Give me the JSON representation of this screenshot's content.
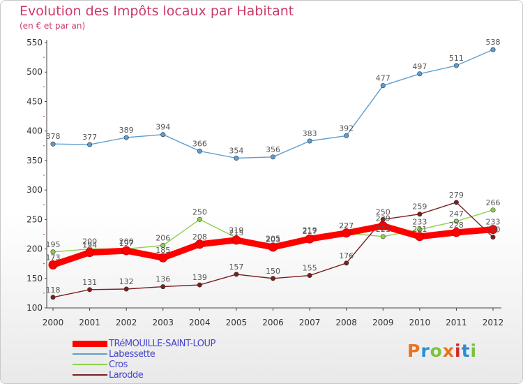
{
  "header": {
    "title": "Evolution des Impôts locaux par Habitant",
    "subtitle": "(en € et par an)"
  },
  "logo": {
    "text": "Proxiti",
    "letters": [
      "P",
      "r",
      "o",
      "x",
      "i",
      "t",
      "i"
    ],
    "colors": [
      "#e8731e",
      "#2a8fd4",
      "#7cc242",
      "#e8731e",
      "#d4242a",
      "#2a8fd4",
      "#7cc242"
    ]
  },
  "colors": {
    "title": "#cc3a66",
    "axis_ticks": "#cc3a66",
    "label_text": "#555555"
  },
  "chart_data": {
    "type": "line",
    "x": [
      "2000",
      "2001",
      "2002",
      "2003",
      "2004",
      "2005",
      "2006",
      "2007",
      "2008",
      "2009",
      "2010",
      "2011",
      "2012"
    ],
    "ylim": [
      100,
      550
    ],
    "yticks": [
      100,
      150,
      200,
      250,
      300,
      350,
      400,
      450,
      500,
      550
    ],
    "grid": false,
    "legend_position": "bottom-left",
    "series": [
      {
        "name": "TRéMOUILLE-SAINT-LOUP",
        "color": "#ff0000",
        "values": [
          173,
          194,
          197,
          185,
          208,
          215,
          203,
          217,
          227,
          239,
          221,
          228,
          233
        ]
      },
      {
        "name": "Labessette",
        "color": "#5d9fd2",
        "values": [
          378,
          377,
          389,
          394,
          366,
          354,
          356,
          383,
          392,
          477,
          497,
          511,
          538
        ]
      },
      {
        "name": "Cros",
        "color": "#8ed14f",
        "values": [
          195,
          200,
          200,
          206,
          250,
          219,
          205,
          219,
          227,
          221,
          233,
          247,
          266
        ]
      },
      {
        "name": "Larodde",
        "color": "#7a1f1f",
        "values": [
          118,
          131,
          132,
          136,
          139,
          157,
          150,
          155,
          176,
          250,
          259,
          279,
          220
        ]
      }
    ]
  }
}
